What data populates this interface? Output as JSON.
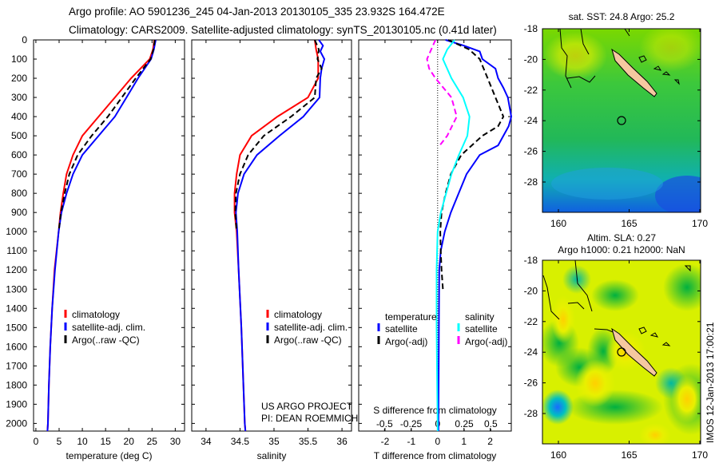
{
  "header": {
    "title_line1": "Argo profile: AO 5901236_245 04-Jan-2013 20130105_335 23.932S 164.472E",
    "title_line2": "Climatology: CARS2009. Satellite-adjusted climatology: synTS_20130105.nc (0.41d later)"
  },
  "colors": {
    "climatology": "#ff0000",
    "satellite": "#0000ff",
    "argo": "#000000",
    "sal_satellite": "#00ffff",
    "sal_argo": "#ff00ff"
  },
  "chart_data": [
    {
      "type": "line",
      "id": "temperature",
      "xlabel": "temperature (deg C)",
      "ylabel": "depth",
      "xlim": [
        -0.5,
        32
      ],
      "ylim": [
        2040,
        0
      ],
      "xticks": [
        0,
        5,
        10,
        15,
        20,
        25,
        30
      ],
      "xtick_labels": [
        "0",
        "5",
        "10",
        "15",
        "20",
        "25",
        "30"
      ],
      "yticks": [
        0,
        100,
        200,
        300,
        400,
        500,
        600,
        700,
        800,
        900,
        1000,
        1100,
        1200,
        1300,
        1400,
        1500,
        1600,
        1700,
        1800,
        1900,
        2000
      ],
      "ytick_labels": [
        "0",
        "100",
        "200",
        "300",
        "400",
        "500",
        "600",
        "700",
        "800",
        "900",
        "1000",
        "1100",
        "1200",
        "1300",
        "1400",
        "1500",
        "1600",
        "1700",
        "1800",
        "1900",
        "2000"
      ],
      "legend": [
        "climatology",
        "satellite-adj. clim.",
        "Argo(..raw -QC)"
      ],
      "series": [
        {
          "name": "climatology",
          "color": "#ff0000",
          "dash": false,
          "depth": [
            0,
            50,
            100,
            200,
            300,
            400,
            500,
            600,
            700,
            800,
            900,
            1000,
            1200,
            1400,
            1600,
            1800,
            2000,
            2040
          ],
          "values": [
            25.5,
            25.2,
            24.5,
            20.5,
            17,
            13.5,
            10,
            8,
            6.6,
            5.9,
            5.3,
            4.9,
            4,
            3.5,
            3.1,
            2.8,
            2.6,
            2.5
          ]
        },
        {
          "name": "satellite-adj. clim.",
          "color": "#0000ff",
          "dash": false,
          "depth": [
            0,
            50,
            100,
            200,
            300,
            400,
            500,
            600,
            700,
            800,
            900,
            1000,
            1200,
            1400,
            1600,
            1800,
            2000,
            2040
          ],
          "values": [
            25.8,
            25.4,
            24.8,
            22,
            19.5,
            17,
            13.5,
            10,
            8,
            6.6,
            5.5,
            4.9,
            4.1,
            3.5,
            3.1,
            2.8,
            2.6,
            2.5
          ]
        },
        {
          "name": "Argo(..raw -QC)",
          "color": "#000000",
          "dash": true,
          "depth": [
            0,
            50,
            100,
            200,
            300,
            400,
            500,
            600,
            700,
            800,
            900,
            1000
          ],
          "values": [
            25.6,
            25.3,
            24.7,
            21.5,
            18.5,
            15.5,
            12,
            9,
            7.2,
            6.2,
            5.4,
            4.9
          ]
        }
      ]
    },
    {
      "type": "line",
      "id": "salinity",
      "xlabel": "salinity",
      "xlim": [
        33.79,
        36.14
      ],
      "ylim": [
        2040,
        0
      ],
      "xticks": [
        34,
        34.5,
        35,
        35.5,
        36
      ],
      "xtick_labels": [
        "34",
        "34.5",
        "35",
        "35.5",
        "36"
      ],
      "legend": [
        "climatology",
        "satellite-adj. clim.",
        "Argo(..raw -QC)"
      ],
      "annotation": [
        "US ARGO PROJECT",
        "PI: DEAN ROEMMICH"
      ],
      "series": [
        {
          "name": "climatology",
          "color": "#ff0000",
          "dash": false,
          "depth": [
            0,
            50,
            100,
            200,
            300,
            400,
            500,
            600,
            700,
            800,
            900,
            1000,
            1200,
            1500,
            2000,
            2040
          ],
          "values": [
            35.6,
            35.62,
            35.65,
            35.65,
            35.5,
            35.05,
            34.67,
            34.5,
            34.45,
            34.42,
            34.42,
            34.45,
            34.48,
            34.52,
            34.57,
            34.58
          ]
        },
        {
          "name": "satellite-adj. clim.",
          "color": "#0000ff",
          "dash": false,
          "depth": [
            0,
            30,
            60,
            100,
            150,
            200,
            300,
            400,
            500,
            600,
            700,
            800,
            900,
            1000,
            1200,
            1500,
            2000,
            2040
          ],
          "values": [
            35.66,
            35.72,
            35.68,
            35.74,
            35.7,
            35.68,
            35.67,
            35.43,
            35.08,
            34.75,
            34.56,
            34.47,
            34.44,
            34.46,
            34.48,
            34.52,
            34.57,
            34.58
          ]
        },
        {
          "name": "Argo(..raw -QC)",
          "color": "#000000",
          "dash": true,
          "depth": [
            0,
            50,
            100,
            150,
            200,
            300,
            400,
            500,
            600,
            700,
            800,
            900,
            1000
          ],
          "values": [
            35.6,
            35.66,
            35.64,
            35.7,
            35.62,
            35.6,
            35.25,
            34.85,
            34.62,
            34.5,
            34.44,
            34.43,
            34.45
          ]
        }
      ]
    },
    {
      "type": "line",
      "id": "difference",
      "xlabel": "T difference from climatology",
      "x2label": "S difference from climatology",
      "xlim": [
        -3.0,
        2.8
      ],
      "ylim": [
        2040,
        0
      ],
      "xticks": [
        -2,
        -1,
        0,
        1,
        2
      ],
      "xtick_labels": [
        "-2",
        "-1",
        "0",
        "1",
        "2"
      ],
      "x2ticks": [
        -0.5,
        -0.25,
        0,
        0.25,
        0.5
      ],
      "x2tick_labels": [
        "-0.5",
        "-0.25",
        "0",
        "0.25",
        "0.5"
      ],
      "legend_temperature": {
        "heading": "temperature",
        "items": [
          "satellite",
          "Argo(-adj)"
        ]
      },
      "legend_salinity": {
        "heading": "salinity",
        "items": [
          "satellite",
          "Argo(-adj)"
        ]
      },
      "series": [
        {
          "name": "T satellite",
          "axis": "T",
          "color": "#0000ff",
          "dash": false,
          "depth": [
            0,
            30,
            60,
            100,
            150,
            200,
            250,
            300,
            400,
            450,
            500,
            550,
            600,
            700,
            800,
            900,
            1000,
            1100,
            1200,
            1500,
            2000,
            2040
          ],
          "values": [
            0.3,
            1.0,
            1.6,
            1.7,
            2.2,
            2.3,
            2.5,
            2.67,
            2.8,
            2.7,
            2.5,
            2.3,
            1.6,
            1.1,
            0.8,
            0.5,
            0.27,
            0.12,
            0.06,
            0.05,
            0.03,
            0.03
          ]
        },
        {
          "name": "T Argo(-adj)",
          "axis": "T",
          "color": "#000000",
          "dash": true,
          "depth": [
            0,
            50,
            100,
            200,
            300,
            400,
            450,
            500,
            600,
            700,
            800,
            900,
            1000,
            1100,
            1200,
            1300
          ],
          "values": [
            0.4,
            1.2,
            1.6,
            1.9,
            2.2,
            2.5,
            2.3,
            1.7,
            0.9,
            0.5,
            0.3,
            0.15,
            0.1,
            0.12,
            0.15,
            0.2
          ]
        },
        {
          "name": "S satellite",
          "axis": "S",
          "color": "#00ffff",
          "dash": false,
          "depth": [
            0,
            50,
            100,
            200,
            300,
            400,
            500,
            600,
            700,
            800,
            900,
            1000,
            1200,
            1500,
            2000,
            2040
          ],
          "values": [
            0.16,
            0.09,
            0.05,
            0.13,
            0.24,
            0.3,
            0.28,
            0.2,
            0.13,
            0.08,
            0.03,
            0.0,
            -0.01,
            -0.01,
            0.0,
            0.0
          ]
        },
        {
          "name": "S Argo(-adj)",
          "axis": "S",
          "color": "#ff00ff",
          "dash": true,
          "depth": [
            0,
            50,
            100,
            150,
            200,
            300,
            400,
            500,
            550
          ],
          "values": [
            -0.02,
            -0.06,
            -0.1,
            -0.08,
            -0.02,
            0.13,
            0.18,
            0.09,
            0.02
          ]
        }
      ]
    }
  ],
  "maps": [
    {
      "title": "sat. SST: 24.8 Argo: 25.2",
      "lat_labels": [
        "-18",
        "-20",
        "-22",
        "-24",
        "-26",
        "-28"
      ],
      "lon_labels": [
        "160",
        "165",
        "170"
      ],
      "float_position": {
        "lat": -23.932,
        "lon": 164.472
      }
    },
    {
      "title_line1": "Altim. SLA: 0.27",
      "title_line2": "Argo h1000: 0.21 h2000: NaN",
      "lat_labels": [
        "-18",
        "-20",
        "-22",
        "-24",
        "-26",
        "-28"
      ],
      "lon_labels": [
        "160",
        "165",
        "170"
      ],
      "float_position": {
        "lat": -23.932,
        "lon": 164.472
      }
    }
  ],
  "footer": {
    "stamp": "IMOS 12-Jan-2013 17:00:21"
  }
}
